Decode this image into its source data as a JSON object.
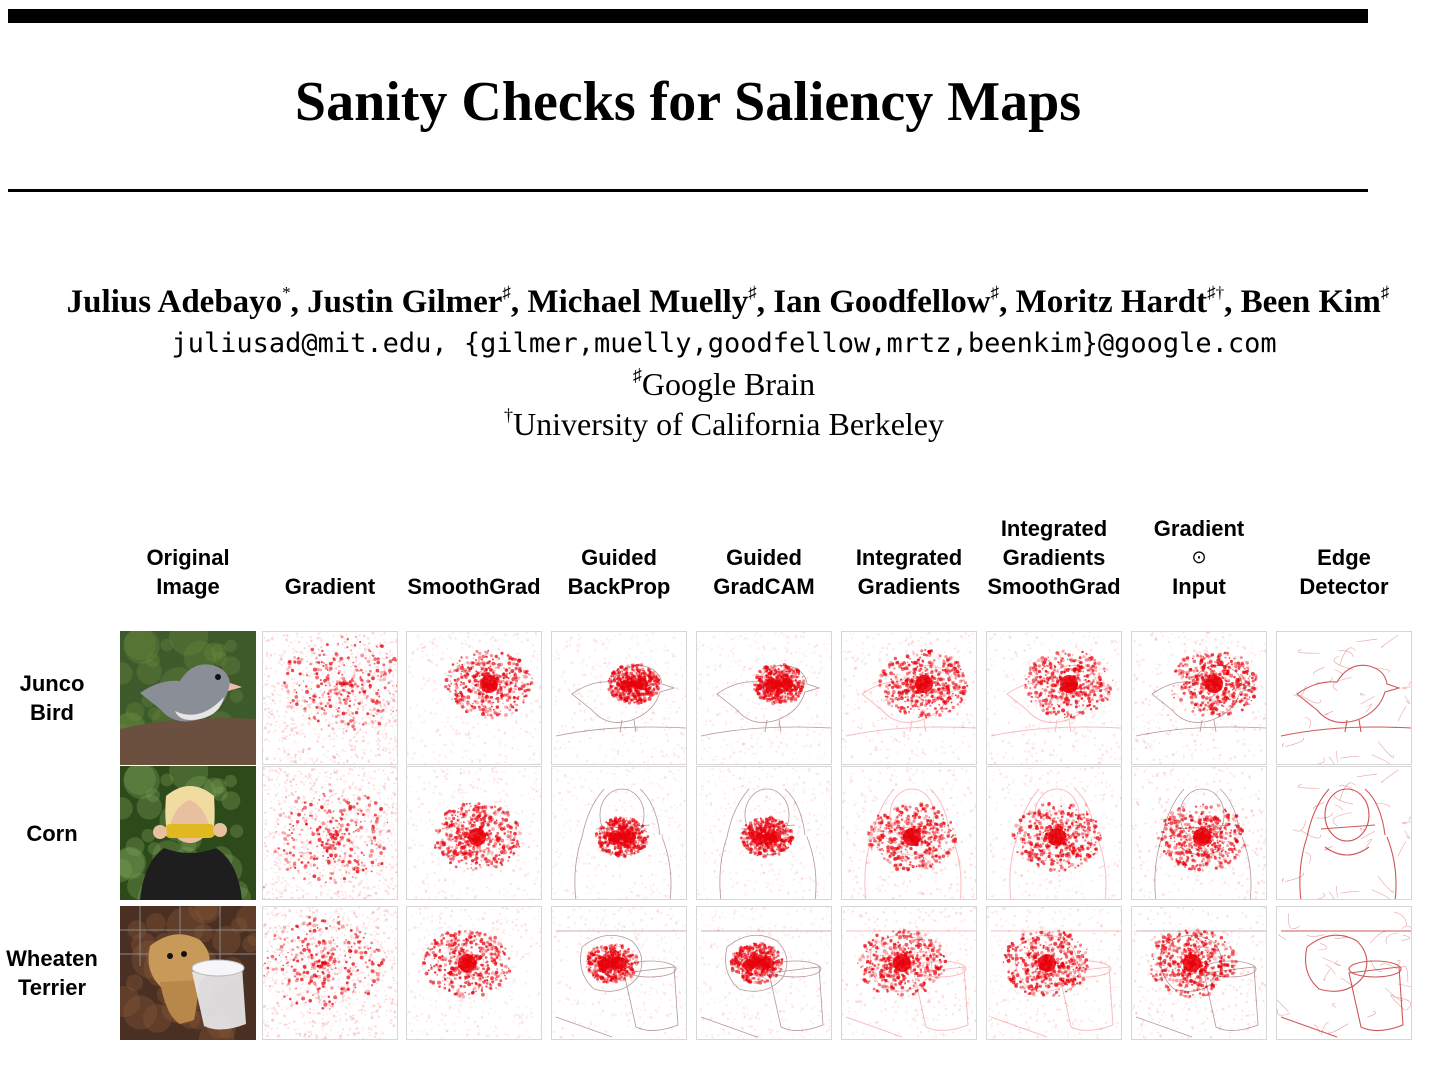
{
  "paper": {
    "title": "Sanity Checks for Saliency Maps",
    "authors": [
      {
        "name": "Julius Adebayo",
        "mark": "*",
        "sep": ", "
      },
      {
        "name": "Justin Gilmer",
        "mark": "♯",
        "sep": ", "
      },
      {
        "name": "Michael Muelly",
        "mark": "♯",
        "sep": ", "
      },
      {
        "name": "Ian Goodfellow",
        "mark": "♯",
        "sep": ", "
      },
      {
        "name": "Moritz Hardt",
        "mark": "♯†",
        "sep": ", "
      },
      {
        "name": "Been Kim",
        "mark": "♯",
        "sep": ""
      }
    ],
    "emails": "juliusad@mit.edu, {gilmer,muelly,goodfellow,mrtz,beenkim}@google.com",
    "affiliations": [
      {
        "mark": "♯",
        "name": "Google Brain"
      },
      {
        "mark": "†",
        "name": "University of California Berkeley"
      }
    ]
  },
  "figure": {
    "columns": [
      {
        "label": "Original Image",
        "lines": [
          "Original",
          "Image"
        ],
        "icon": "photo"
      },
      {
        "label": "Gradient",
        "lines": [
          "Gradient"
        ],
        "icon": "saliency-map"
      },
      {
        "label": "SmoothGrad",
        "lines": [
          "SmoothGrad"
        ],
        "icon": "saliency-map"
      },
      {
        "label": "Guided BackProp",
        "lines": [
          "Guided",
          "BackProp"
        ],
        "icon": "saliency-map"
      },
      {
        "label": "Guided GradCAM",
        "lines": [
          "Guided",
          "GradCAM"
        ],
        "icon": "saliency-map"
      },
      {
        "label": "Integrated Gradients",
        "lines": [
          "Integrated",
          "Gradients"
        ],
        "icon": "saliency-map"
      },
      {
        "label": "Integrated Gradients SmoothGrad",
        "lines": [
          "Integrated",
          "Gradients",
          "SmoothGrad"
        ],
        "icon": "saliency-map"
      },
      {
        "label": "Gradient ⊙ Input",
        "lines": [
          "Gradient",
          "⊙",
          "Input"
        ],
        "icon": "saliency-map"
      },
      {
        "label": "Edge Detector",
        "lines": [
          "Edge",
          "Detector"
        ],
        "icon": "edge-map"
      }
    ],
    "rows": [
      {
        "label": "Junco Bird",
        "lines": [
          "Junco",
          "Bird"
        ],
        "subject": "bird"
      },
      {
        "label": "Corn",
        "lines": [
          "Corn"
        ],
        "subject": "corn"
      },
      {
        "label": "Wheaten Terrier",
        "lines": [
          "Wheaten",
          "Terrier"
        ],
        "subject": "terrier"
      }
    ],
    "colors": {
      "saliency": "#e8000b",
      "cell_border": "#d6d6d6"
    }
  }
}
